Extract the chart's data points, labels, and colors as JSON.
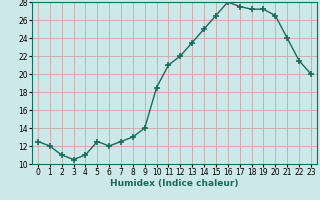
{
  "x": [
    0,
    1,
    2,
    3,
    4,
    5,
    6,
    7,
    8,
    9,
    10,
    11,
    12,
    13,
    14,
    15,
    16,
    17,
    18,
    19,
    20,
    21,
    22,
    23
  ],
  "y": [
    12.5,
    12.0,
    11.0,
    10.5,
    11.0,
    12.5,
    12.0,
    12.5,
    13.0,
    14.0,
    18.5,
    21.0,
    22.0,
    23.5,
    25.0,
    26.5,
    28.0,
    27.5,
    27.2,
    27.2,
    26.5,
    24.0,
    21.5,
    20.0
  ],
  "line_color": "#1a6b5a",
  "marker": "+",
  "marker_size": 4,
  "bg_color": "#cce8e8",
  "grid_color_major": "#c8a0a0",
  "grid_color_minor": "#b8d8d8",
  "xlabel": "Humidex (Indice chaleur)",
  "ylim": [
    10,
    28
  ],
  "xlim": [
    -0.5,
    23.5
  ],
  "yticks": [
    10,
    12,
    14,
    16,
    18,
    20,
    22,
    24,
    26,
    28
  ],
  "xticks": [
    0,
    1,
    2,
    3,
    4,
    5,
    6,
    7,
    8,
    9,
    10,
    11,
    12,
    13,
    14,
    15,
    16,
    17,
    18,
    19,
    20,
    21,
    22,
    23
  ],
  "xlabel_fontsize": 6.5,
  "tick_fontsize": 5.5,
  "ylabel_fontsize": 6
}
